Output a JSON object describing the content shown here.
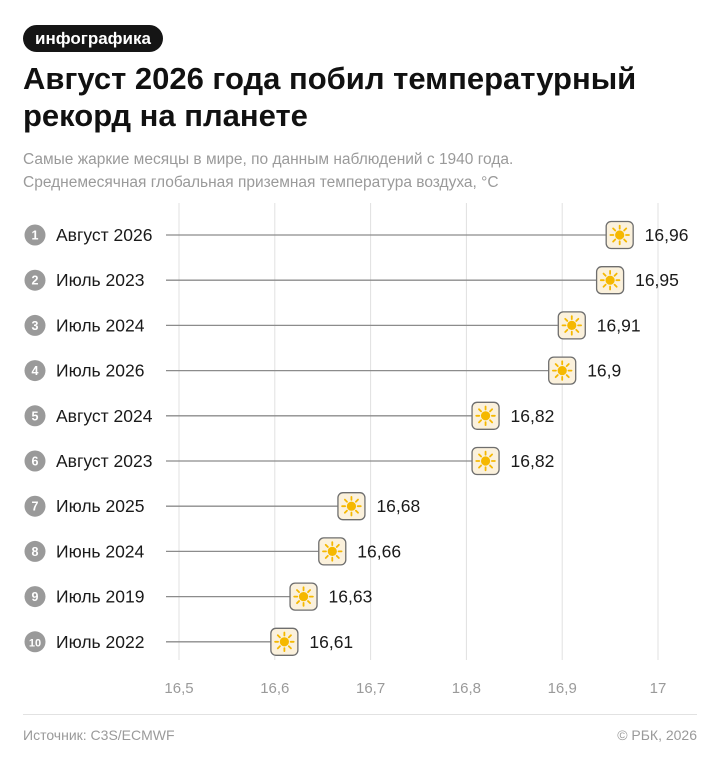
{
  "badge": "инфографика",
  "title_lines": [
    "Август 2026 года побил температурный",
    "рекорд на планете"
  ],
  "subtitle_lines": [
    "Самые жаркие месяцы в мире, по данным наблюдений с 1940 года.",
    "Среднемесячная глобальная приземная температура воздуха, °C"
  ],
  "footer": {
    "source": "Источник: C3S/ECMWF",
    "copyright": "© РБК, 2026"
  },
  "colors": {
    "accent": "#f5b800",
    "marker_bg": "#fbf1dc",
    "rank_circle": "#9a9a9a",
    "grid": "#e0e0e0",
    "line": "#8c8c8c"
  },
  "marker_icon": "sun-icon",
  "chart_data": {
    "type": "dot-plot",
    "title": "Август 2026 года побил температурный рекорд на планете",
    "ylabel": "",
    "xlabel": "",
    "xlim": [
      16.5,
      17
    ],
    "x_ticks": [
      16.5,
      16.6,
      16.7,
      16.8,
      16.9,
      17
    ],
    "x_tick_labels": [
      "16,5",
      "16,6",
      "16,7",
      "16,8",
      "16,9",
      "17"
    ],
    "grid": true,
    "rows": [
      {
        "rank": "1",
        "label": "Август 2026",
        "value": 16.96,
        "value_label": "16,96"
      },
      {
        "rank": "2",
        "label": "Июль 2023",
        "value": 16.95,
        "value_label": "16,95"
      },
      {
        "rank": "3",
        "label": "Июль 2024",
        "value": 16.91,
        "value_label": "16,91"
      },
      {
        "rank": "4",
        "label": "Июль 2026",
        "value": 16.9,
        "value_label": "16,9"
      },
      {
        "rank": "5",
        "label": "Август 2024",
        "value": 16.82,
        "value_label": "16,82"
      },
      {
        "rank": "6",
        "label": "Август 2023",
        "value": 16.82,
        "value_label": "16,82"
      },
      {
        "rank": "7",
        "label": "Июль 2025",
        "value": 16.68,
        "value_label": "16,68"
      },
      {
        "rank": "8",
        "label": "Июнь 2024",
        "value": 16.66,
        "value_label": "16,66"
      },
      {
        "rank": "9",
        "label": "Июль 2019",
        "value": 16.63,
        "value_label": "16,63"
      },
      {
        "rank": "10",
        "label": "Июль 2022",
        "value": 16.61,
        "value_label": "16,61"
      }
    ]
  }
}
